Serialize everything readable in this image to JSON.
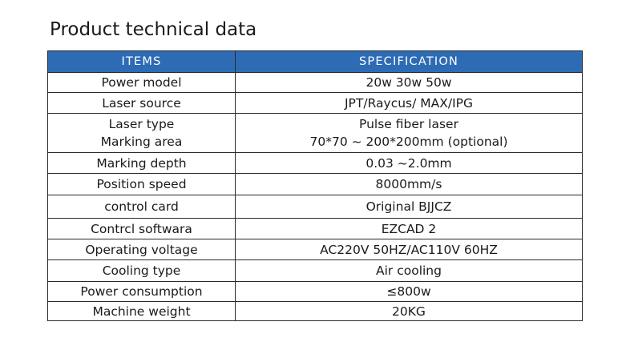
{
  "title": "Product technical data",
  "table": {
    "headers": [
      "ITEMS",
      "SPECIFICATION"
    ],
    "rows": [
      {
        "item": "Power model",
        "spec": "20w 30w 50w"
      },
      {
        "item": "Laser source",
        "spec": "JPT/Raycus/ MAX/IPG"
      },
      {
        "item_lines": [
          "Laser type",
          "Marking area"
        ],
        "spec_lines": [
          "Pulse fiber laser",
          "70*70 ~ 200*200mm (optional)"
        ]
      },
      {
        "item": "Marking depth",
        "spec": "0.03 ~2.0mm"
      },
      {
        "item": "Position speed",
        "spec": "8000mm/s"
      },
      {
        "item": "control card",
        "spec": "Original BJJCZ"
      },
      {
        "item": "Contrcl softwara",
        "spec": "EZCAD 2"
      },
      {
        "item": "Operating voltage",
        "spec": "AC220V 50HZ/AC110V 60HZ"
      },
      {
        "item": "Cooling type",
        "spec": "Air cooling"
      },
      {
        "item": "Power consumption",
        "spec": "≤800w"
      },
      {
        "item": "Machine weight",
        "spec": "20KG"
      }
    ]
  },
  "colors": {
    "header_background": "#2e6bb5",
    "header_text": "#ffffff",
    "border": "#2a2a2a"
  }
}
